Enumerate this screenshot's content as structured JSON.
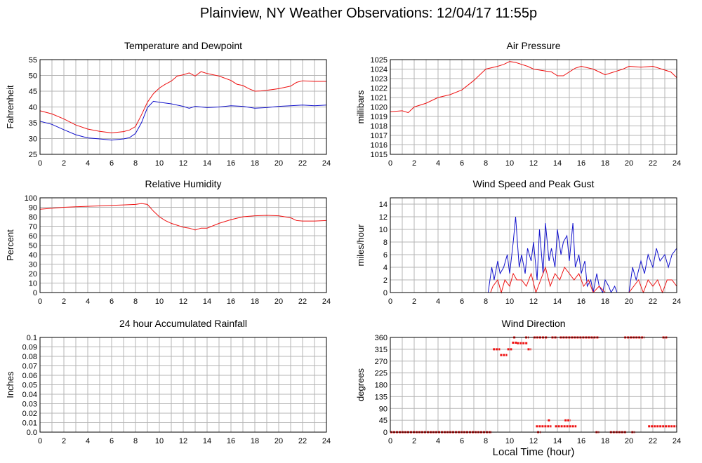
{
  "page": {
    "title": "Plainview, NY Weather Observations: 12/04/17 11:55p"
  },
  "global_xlabel": "Local Time (hour)",
  "colors": {
    "red": "#ee1111",
    "blue": "#1111cc",
    "grid": "#b4b4b4"
  },
  "chart_data": [
    {
      "id": "temp",
      "type": "line",
      "title": "Temperature and Dewpoint",
      "ylabel": "Fahrenheit",
      "xlim": [
        0,
        24
      ],
      "ylim": [
        25,
        55
      ],
      "xticks": [
        0,
        2,
        4,
        6,
        8,
        10,
        12,
        14,
        16,
        18,
        20,
        22,
        24
      ],
      "yticks": [
        25,
        30,
        35,
        40,
        45,
        50,
        55
      ],
      "grid": true,
      "series": [
        {
          "color": "#ee1111",
          "x": [
            0,
            1,
            2,
            3,
            4,
            5,
            6,
            7,
            7.5,
            8,
            8.5,
            9,
            9.5,
            10,
            10.5,
            11,
            11.5,
            12,
            12.5,
            13,
            13.5,
            14,
            15,
            16,
            16.5,
            17,
            17.5,
            18,
            18.5,
            19,
            20,
            21,
            21.5,
            22,
            23,
            24
          ],
          "y": [
            38.8,
            37.8,
            36.2,
            34.3,
            33,
            32.3,
            31.8,
            32.2,
            32.7,
            33.8,
            37.5,
            41.5,
            44.2,
            46,
            47.2,
            48.2,
            49.8,
            50.2,
            50.8,
            49.8,
            51.2,
            50.6,
            49.8,
            48.4,
            47.2,
            46.8,
            45.8,
            45,
            45.1,
            45.3,
            45.8,
            46.6,
            47.8,
            48.3,
            48.1,
            48.1
          ]
        },
        {
          "color": "#1111cc",
          "x": [
            0,
            1,
            2,
            3,
            4,
            5,
            6,
            7,
            7.5,
            8,
            8.5,
            9,
            9.5,
            10,
            11,
            12,
            12.5,
            13,
            14,
            15,
            16,
            17,
            18,
            19,
            20,
            21,
            22,
            23,
            24
          ],
          "y": [
            35.5,
            34.5,
            32.8,
            31.2,
            30.2,
            29.9,
            29.5,
            29.9,
            30.3,
            31.6,
            35,
            39.8,
            41.8,
            41.5,
            41,
            40.2,
            39.6,
            40.2,
            39.8,
            40,
            40.4,
            40.2,
            39.6,
            39.8,
            40.2,
            40.4,
            40.6,
            40.4,
            40.6
          ]
        }
      ]
    },
    {
      "id": "pressure",
      "type": "line",
      "title": "Air Pressure",
      "ylabel": "millibars",
      "xlim": [
        0,
        24
      ],
      "ylim": [
        1015,
        1025
      ],
      "xticks": [
        0,
        2,
        4,
        6,
        8,
        10,
        12,
        14,
        16,
        18,
        20,
        22,
        24
      ],
      "yticks": [
        1015,
        1016,
        1017,
        1018,
        1019,
        1020,
        1021,
        1022,
        1023,
        1024,
        1025
      ],
      "grid": true,
      "series": [
        {
          "color": "#ee1111",
          "x": [
            0,
            1,
            1.5,
            2,
            3,
            4,
            5,
            6,
            7,
            7.5,
            8,
            9,
            9.5,
            10,
            10.5,
            11,
            11.5,
            12,
            12.5,
            13,
            13.5,
            14,
            14.5,
            15,
            15.5,
            16,
            17,
            17.5,
            18,
            18.5,
            19,
            19.5,
            20,
            21,
            22,
            23,
            23.5,
            24
          ],
          "y": [
            1019.5,
            1019.6,
            1019.4,
            1020,
            1020.4,
            1021,
            1021.3,
            1021.8,
            1022.8,
            1023.4,
            1024,
            1024.3,
            1024.5,
            1024.8,
            1024.7,
            1024.5,
            1024.3,
            1024,
            1023.9,
            1023.8,
            1023.7,
            1023.3,
            1023.3,
            1023.7,
            1024.1,
            1024.3,
            1024,
            1023.7,
            1023.4,
            1023.6,
            1023.8,
            1024,
            1024.3,
            1024.2,
            1024.3,
            1023.9,
            1023.7,
            1023.1
          ]
        }
      ]
    },
    {
      "id": "humidity",
      "type": "line",
      "title": "Relative Humidity",
      "ylabel": "Percent",
      "xlim": [
        0,
        24
      ],
      "ylim": [
        0,
        100
      ],
      "xticks": [
        0,
        2,
        4,
        6,
        8,
        10,
        12,
        14,
        16,
        18,
        20,
        22,
        24
      ],
      "yticks": [
        0,
        10,
        20,
        30,
        40,
        50,
        60,
        70,
        80,
        90,
        100
      ],
      "grid": true,
      "series": [
        {
          "color": "#ee1111",
          "x": [
            0,
            1,
            2,
            3,
            4,
            5,
            6,
            7,
            8,
            8.5,
            9,
            9.5,
            10,
            10.5,
            11,
            11.5,
            12,
            12.5,
            13,
            13.5,
            14,
            15,
            16,
            17,
            18,
            19,
            20,
            21,
            21.5,
            22,
            23,
            24
          ],
          "y": [
            88,
            89,
            90,
            90.5,
            91,
            91.5,
            92,
            92.5,
            93,
            94,
            93,
            86,
            80,
            76,
            73,
            71,
            69,
            68,
            66,
            68,
            68,
            73,
            77,
            80,
            81,
            81.5,
            81,
            79,
            76,
            75.5,
            75.5,
            76
          ]
        }
      ]
    },
    {
      "id": "wind",
      "type": "line",
      "title": "Wind Speed and Peak Gust",
      "ylabel": "miles/hour",
      "xlim": [
        0,
        24
      ],
      "ylim": [
        0,
        15
      ],
      "xticks": [
        0,
        2,
        4,
        6,
        8,
        10,
        12,
        14,
        16,
        18,
        20,
        22,
        24
      ],
      "yticks": [
        0,
        2,
        4,
        6,
        8,
        10,
        12,
        14
      ],
      "grid": true,
      "series": [
        {
          "color": "#1111cc",
          "x": [
            0,
            8.2,
            8.5,
            8.7,
            9,
            9.2,
            9.5,
            9.8,
            10,
            10.3,
            10.5,
            10.8,
            11,
            11.3,
            11.5,
            11.8,
            12,
            12.3,
            12.5,
            12.8,
            13,
            13.3,
            13.5,
            13.8,
            14,
            14.3,
            14.5,
            14.8,
            15,
            15.3,
            15.5,
            15.8,
            16,
            16.3,
            16.5,
            16.8,
            17,
            17.3,
            17.5,
            17.8,
            18,
            18.3,
            18.5,
            18.8,
            19,
            19.5,
            20,
            20.3,
            20.6,
            21,
            21.3,
            21.6,
            22,
            22.3,
            22.6,
            23,
            23.3,
            23.6,
            24
          ],
          "y": [
            0,
            0,
            4,
            2,
            5,
            3,
            4,
            6,
            3,
            8,
            12,
            4,
            6,
            3,
            7,
            5,
            8,
            2,
            10,
            3,
            11,
            5,
            7,
            4,
            10,
            6,
            8,
            9,
            5,
            11,
            4,
            6,
            3,
            5,
            1,
            2,
            0,
            3,
            1,
            0,
            2,
            1,
            0,
            1,
            0,
            0,
            0,
            4,
            2,
            5,
            3,
            6,
            4,
            7,
            5,
            6,
            4,
            6,
            7
          ]
        },
        {
          "color": "#ee1111",
          "x": [
            0,
            8.4,
            8.6,
            9,
            9.3,
            9.6,
            10,
            10.3,
            10.6,
            11,
            11.4,
            11.8,
            12.2,
            12.6,
            13,
            13.4,
            13.8,
            14.2,
            14.6,
            15,
            15.4,
            15.8,
            16.2,
            16.6,
            17,
            17.5,
            18,
            19,
            20,
            20.4,
            20.8,
            21.2,
            21.6,
            22,
            22.4,
            22.8,
            23.2,
            23.6,
            24
          ],
          "y": [
            0,
            0,
            1,
            2,
            0,
            2,
            1,
            3,
            2,
            2,
            1,
            3,
            0,
            2,
            4,
            1,
            3,
            2,
            4,
            3,
            2,
            3,
            1,
            2,
            0,
            1,
            0,
            0,
            0,
            1,
            2,
            0,
            2,
            1,
            2,
            0,
            2,
            2,
            1
          ]
        }
      ]
    },
    {
      "id": "rain",
      "type": "line",
      "title": "24 hour Accumulated Rainfall",
      "ylabel": "Inches",
      "xlim": [
        0,
        24
      ],
      "ylim": [
        0,
        0.1
      ],
      "xticks": [
        0,
        2,
        4,
        6,
        8,
        10,
        12,
        14,
        16,
        18,
        20,
        22,
        24
      ],
      "yticks": [
        0.0,
        0.01,
        0.02,
        0.03,
        0.04,
        0.05,
        0.06,
        0.07,
        0.08,
        0.09,
        0.1
      ],
      "ytick_labels": [
        "0.0",
        "0.01",
        "0.02",
        "0.03",
        "0.04",
        "0.05",
        "0.06",
        "0.07",
        "0.08",
        "0.09",
        "0.1"
      ],
      "grid": true,
      "series": [
        {
          "color": "#ee1111",
          "x": [
            0,
            24
          ],
          "y": [
            0,
            0
          ]
        }
      ]
    },
    {
      "id": "direction",
      "type": "scatter",
      "title": "Wind Direction",
      "ylabel": "degrees",
      "xlim": [
        0,
        24
      ],
      "ylim": [
        0,
        360
      ],
      "xticks": [
        0,
        2,
        4,
        6,
        8,
        10,
        12,
        14,
        16,
        18,
        20,
        22,
        24
      ],
      "yticks": [
        0,
        45,
        90,
        135,
        180,
        225,
        270,
        315,
        360
      ],
      "grid": true,
      "series": [
        {
          "color": "#ee1111",
          "segments": [
            [
              0,
              8.5,
              0
            ],
            [
              8.6,
              9.2,
              315
            ],
            [
              9.2,
              9.8,
              293
            ],
            [
              9.8,
              10.2,
              315
            ],
            [
              10.2,
              10.6,
              340
            ],
            [
              10.6,
              11.5,
              338
            ],
            [
              11.5,
              11.8,
              315
            ],
            [
              10.3,
              10.5,
              360
            ],
            [
              11.3,
              11.6,
              360
            ],
            [
              12,
              13.2,
              360
            ],
            [
              13.5,
              14,
              360
            ],
            [
              14.2,
              17.5,
              360
            ],
            [
              19.6,
              21.3,
              360
            ],
            [
              22.8,
              23.2,
              360
            ],
            [
              12.2,
              13.5,
              22
            ],
            [
              13.8,
              15.6,
              22
            ],
            [
              14.6,
              15.1,
              45
            ],
            [
              13.2,
              13.4,
              45
            ],
            [
              12.3,
              12.6,
              0
            ],
            [
              17.2,
              17.5,
              0
            ],
            [
              18.4,
              19.8,
              0
            ],
            [
              20.2,
              20.5,
              0
            ],
            [
              21.6,
              24,
              22
            ]
          ]
        }
      ]
    }
  ]
}
